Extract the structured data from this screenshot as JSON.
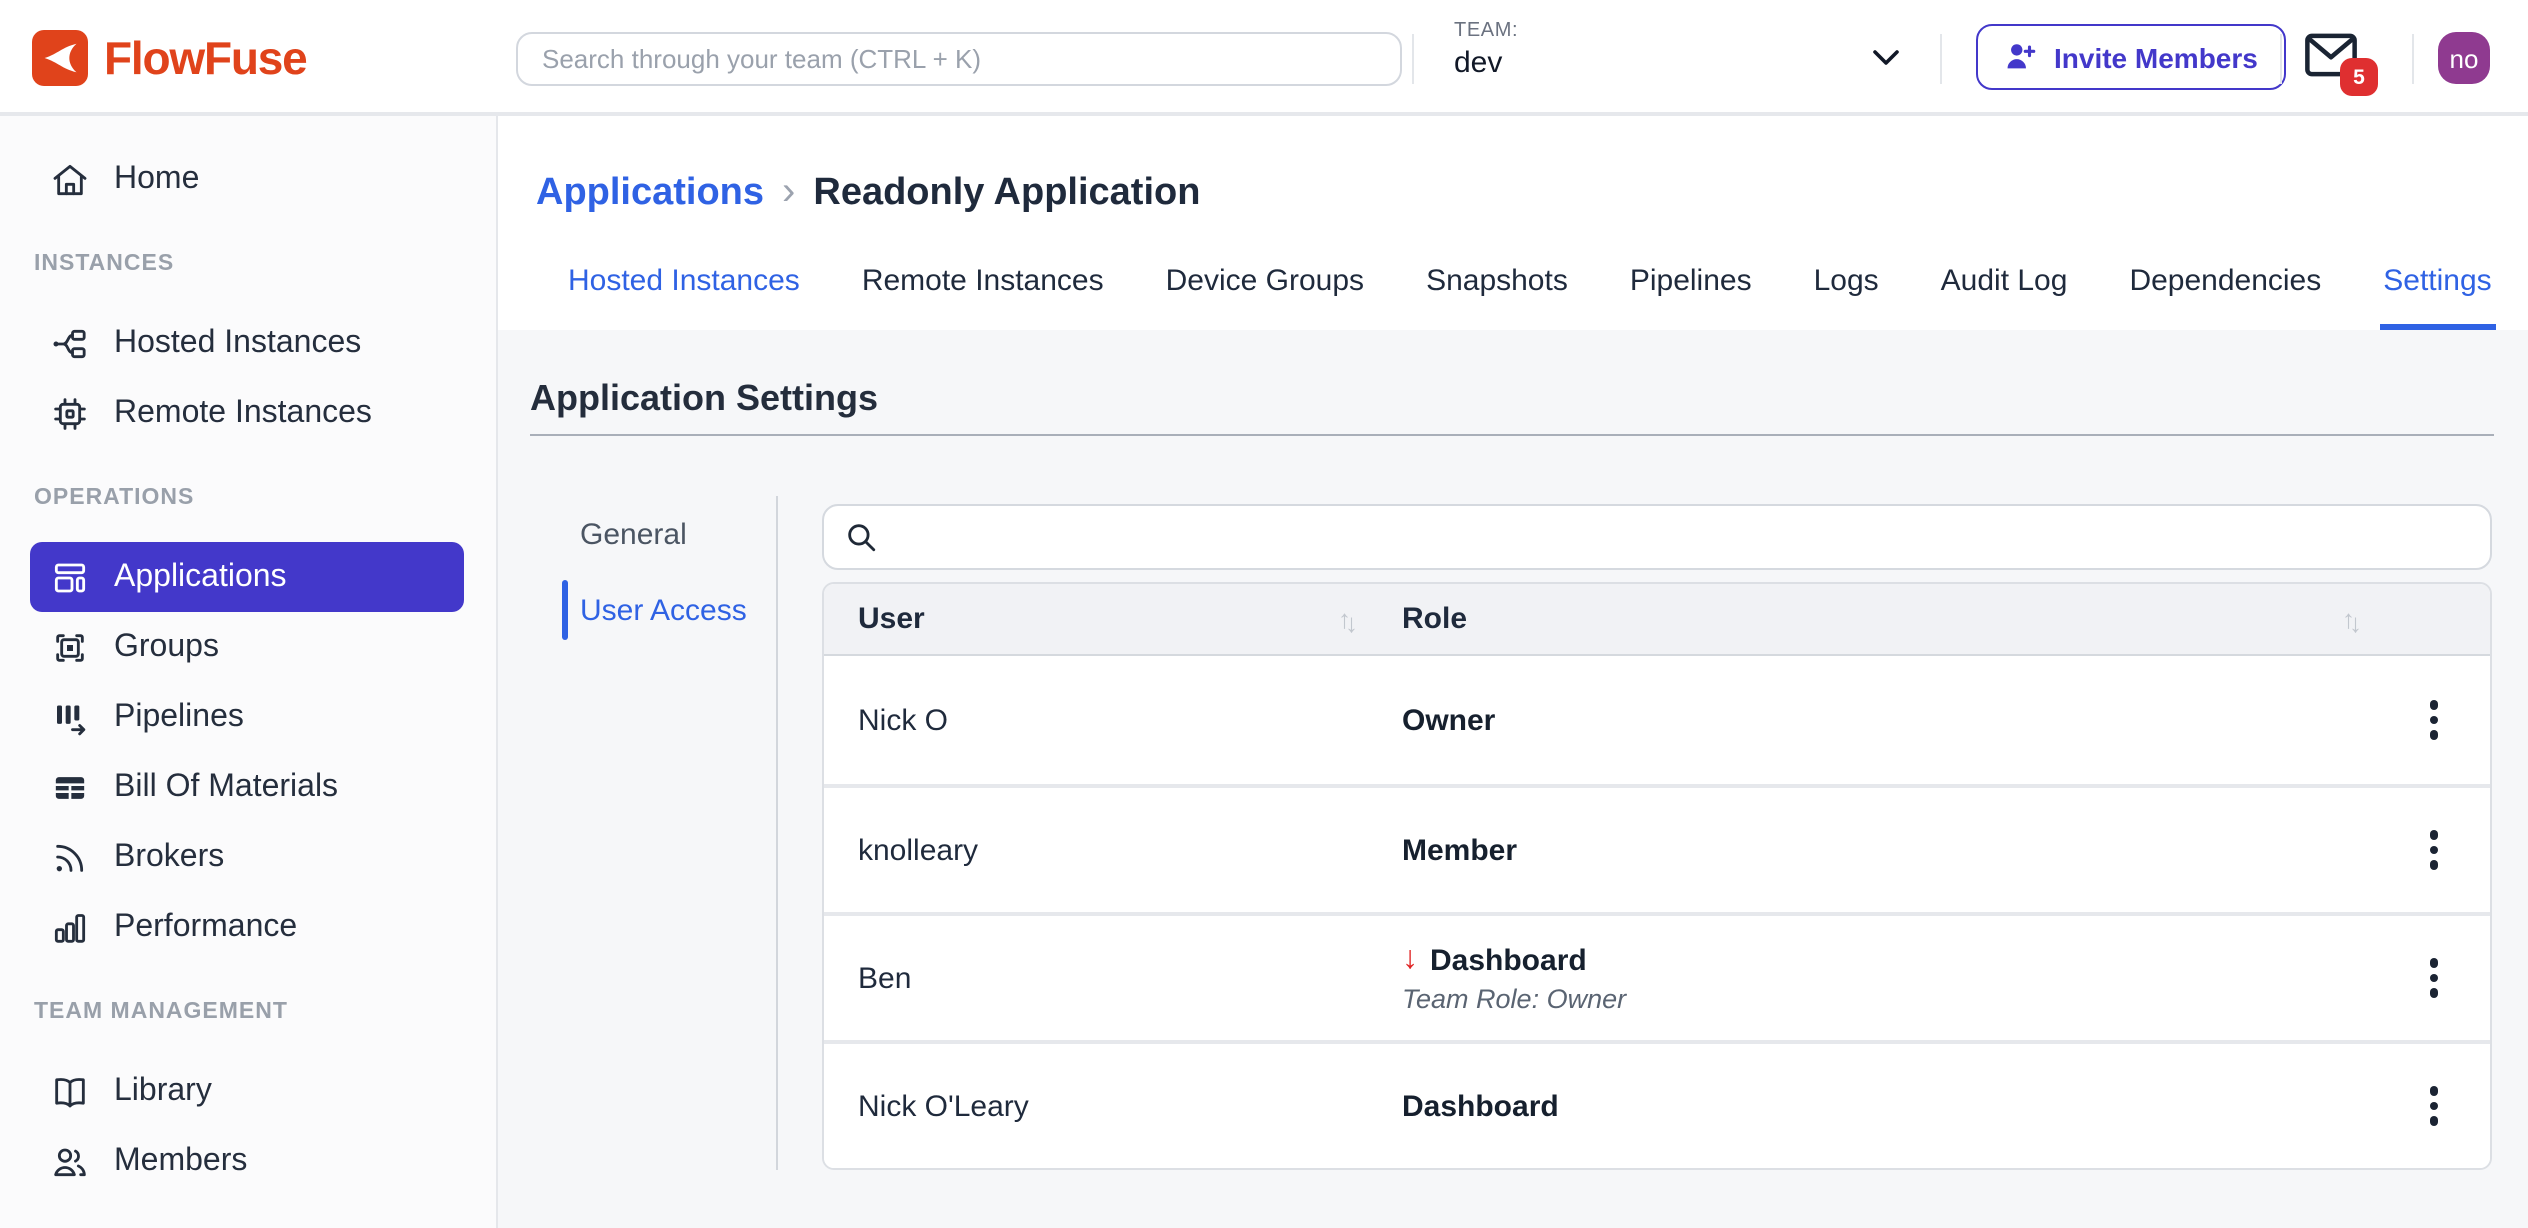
{
  "colors": {
    "brand_red": "#E0431B",
    "accent_indigo": "#4338CA",
    "link_blue": "#2F62E4",
    "badge_red": "#DF2F30",
    "avatar_purple": "#8F3A90",
    "downgrade_arrow_red": "#E02424"
  },
  "header": {
    "logo_text": "FlowFuse",
    "search_placeholder": "Search through your team (CTRL + K)",
    "team_label": "TEAM:",
    "team_name": "dev",
    "invite_button": "Invite Members",
    "notification_count": "5",
    "avatar_initials": "no"
  },
  "sidebar": {
    "sections": [
      {
        "label": "",
        "items": [
          {
            "label": "Home",
            "icon": "home-icon",
            "active": false
          }
        ]
      },
      {
        "label": "INSTANCES",
        "items": [
          {
            "label": "Hosted Instances",
            "icon": "hosted-instances-icon",
            "active": false
          },
          {
            "label": "Remote Instances",
            "icon": "remote-instances-icon",
            "active": false
          }
        ]
      },
      {
        "label": "OPERATIONS",
        "items": [
          {
            "label": "Applications",
            "icon": "applications-icon",
            "active": true
          },
          {
            "label": "Groups",
            "icon": "groups-icon",
            "active": false
          },
          {
            "label": "Pipelines",
            "icon": "pipelines-icon",
            "active": false
          },
          {
            "label": "Bill Of Materials",
            "icon": "bill-of-materials-icon",
            "active": false
          },
          {
            "label": "Brokers",
            "icon": "brokers-icon",
            "active": false
          },
          {
            "label": "Performance",
            "icon": "performance-icon",
            "active": false
          }
        ]
      },
      {
        "label": "TEAM MANAGEMENT",
        "items": [
          {
            "label": "Library",
            "icon": "library-icon",
            "active": false
          },
          {
            "label": "Members",
            "icon": "members-icon",
            "active": false
          }
        ]
      }
    ]
  },
  "main": {
    "breadcrumb": {
      "parent": "Applications",
      "separator": "›",
      "current": "Readonly Application"
    },
    "tabs": [
      {
        "label": "Hosted Instances",
        "active": false,
        "highlighted": true
      },
      {
        "label": "Remote Instances",
        "active": false,
        "highlighted": false
      },
      {
        "label": "Device Groups",
        "active": false,
        "highlighted": false
      },
      {
        "label": "Snapshots",
        "active": false,
        "highlighted": false
      },
      {
        "label": "Pipelines",
        "active": false,
        "highlighted": false
      },
      {
        "label": "Logs",
        "active": false,
        "highlighted": false
      },
      {
        "label": "Audit Log",
        "active": false,
        "highlighted": false
      },
      {
        "label": "Dependencies",
        "active": false,
        "highlighted": false
      },
      {
        "label": "Settings",
        "active": true,
        "highlighted": false
      }
    ]
  },
  "settings": {
    "title": "Application Settings",
    "subnav": [
      {
        "label": "General",
        "active": false
      },
      {
        "label": "User Access",
        "active": true
      }
    ],
    "search_value": "",
    "table": {
      "columns": [
        {
          "label": "User",
          "sortable": true
        },
        {
          "label": "Role",
          "sortable": true
        }
      ],
      "rows": [
        {
          "user": "Nick O",
          "role": "Owner",
          "role_arrow": false,
          "subtext": ""
        },
        {
          "user": "knolleary",
          "role": "Member",
          "role_arrow": false,
          "subtext": ""
        },
        {
          "user": "Ben",
          "role": "Dashboard",
          "role_arrow": true,
          "subtext": "Team Role: Owner"
        },
        {
          "user": "Nick O'Leary",
          "role": "Dashboard",
          "role_arrow": false,
          "subtext": ""
        }
      ]
    }
  }
}
